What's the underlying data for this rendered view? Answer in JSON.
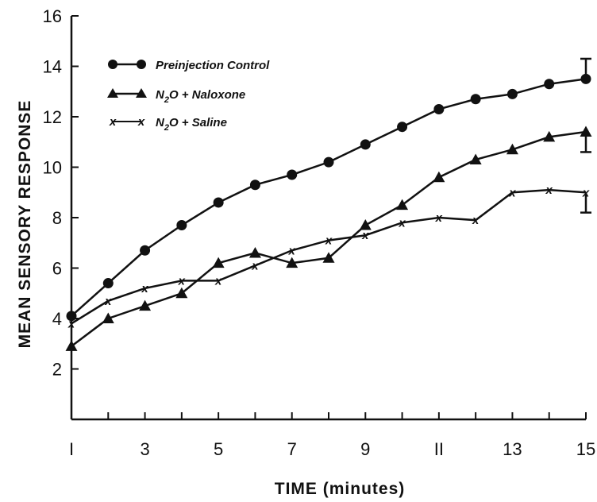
{
  "chart_data": {
    "type": "line",
    "title": "",
    "xlabel": "TIME (minutes)",
    "ylabel": "MEAN SENSORY RESPONSE",
    "xlim": [
      1,
      15
    ],
    "ylim": [
      0,
      16
    ],
    "xticks": [
      1,
      3,
      5,
      7,
      9,
      11,
      13,
      15
    ],
    "xtick_labels": [
      "I",
      "3",
      "5",
      "7",
      "9",
      "II",
      "13",
      "15"
    ],
    "yticks": [
      2,
      4,
      6,
      8,
      10,
      12,
      14,
      16
    ],
    "grid": false,
    "legend_position": "top-left",
    "x": [
      1,
      2,
      3,
      4,
      5,
      6,
      7,
      8,
      9,
      10,
      11,
      12,
      13,
      14,
      15
    ],
    "series": [
      {
        "name": "Preinjection Control",
        "marker": "circle",
        "values": [
          4.1,
          5.4,
          6.7,
          7.7,
          8.6,
          9.3,
          9.7,
          10.2,
          10.9,
          11.6,
          12.3,
          12.7,
          12.9,
          13.3,
          13.5
        ],
        "error_bar": {
          "x": 15,
          "upper": 14.3
        }
      },
      {
        "name": "N2O + Naloxone",
        "marker": "triangle",
        "values": [
          2.9,
          4.0,
          4.5,
          5.0,
          6.2,
          6.6,
          6.2,
          6.4,
          7.7,
          8.5,
          9.6,
          10.3,
          10.7,
          11.2,
          11.4
        ],
        "error_bar": {
          "x": 15,
          "lower": 10.6
        }
      },
      {
        "name": "N2O + Saline",
        "marker": "x",
        "values": [
          3.8,
          4.7,
          5.2,
          5.5,
          5.5,
          6.1,
          6.7,
          7.1,
          7.3,
          7.8,
          8.0,
          7.9,
          9.0,
          9.1,
          9.0
        ],
        "error_bar": {
          "x": 15,
          "lower": 8.2
        }
      }
    ]
  },
  "legend": [
    {
      "label_main": "Preinjection Control"
    },
    {
      "label_main": "N",
      "label_sub": "2",
      "label_rest": "O + Naloxone"
    },
    {
      "label_main": "N",
      "label_sub": "2",
      "label_rest": "O + Saline"
    }
  ]
}
